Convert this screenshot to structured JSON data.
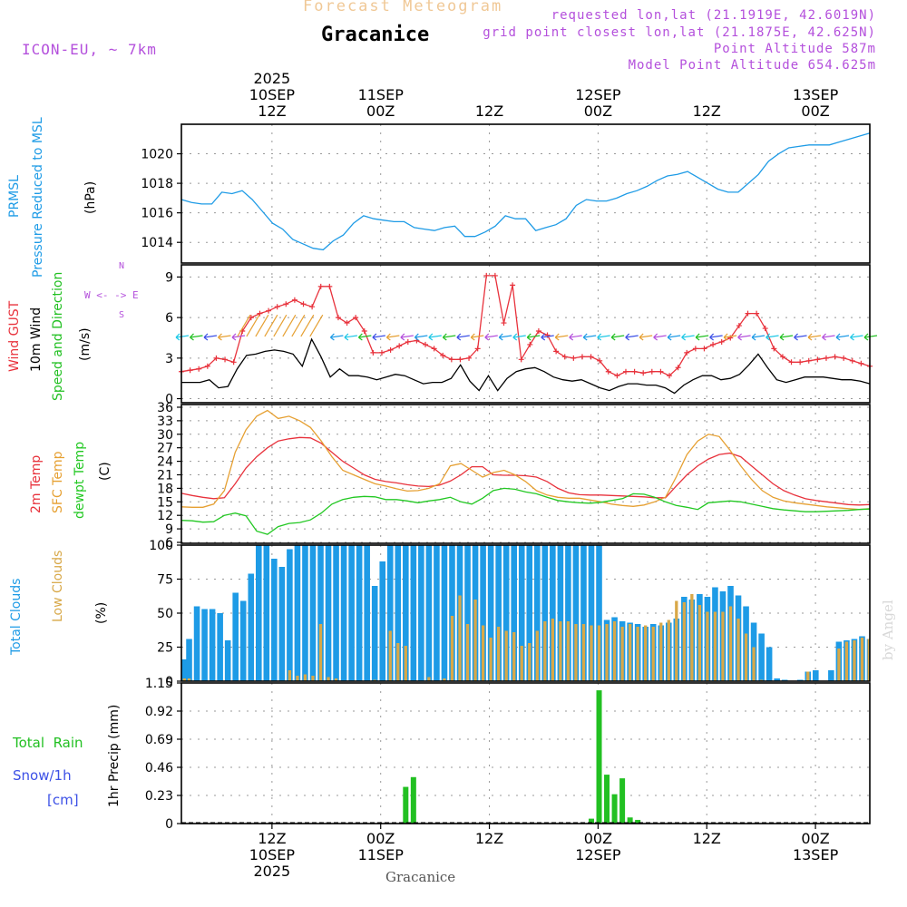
{
  "header": {
    "super_title": "Forecast Meteogram",
    "location": "Gracanice",
    "model": "ICON-EU, ~ 7km",
    "requested": "requested lon,lat (21.1919E, 42.6019N)",
    "grid_point": "grid point closest lon,lat (21.1875E, 42.625N)",
    "point_alt": "Point Altitude 587m",
    "model_alt": "Model Point Altitude 654.625m",
    "watermark": "by Angel",
    "footer": "Gracanice"
  },
  "colors": {
    "pressure": "#1e9be6",
    "gust": "#e8323c",
    "wind": "#000000",
    "dir": "#22c022",
    "t2m": "#e8323c",
    "sfc": "#e6a032",
    "dewpt": "#22c822",
    "total_cloud": "#1e9be6",
    "low_cloud": "#d8a848",
    "rain": "#22c022",
    "snow": "#3c50e6",
    "purple": "#b450dc",
    "title_orange": "#f0c896"
  },
  "chart_data": [
    {
      "type": "line",
      "id": "pressure",
      "title": "PRMSL Pressure Reduced to MSL",
      "ylabel_lines": [
        "PRMSL",
        "Pressure Reduced to MSL"
      ],
      "units": "(hPa)",
      "ylim": [
        1012.6,
        1022.0
      ],
      "yticks": [
        1014,
        1016,
        1018,
        1020
      ],
      "x": [
        0,
        1,
        2,
        3,
        4,
        5,
        6,
        7,
        8,
        9,
        10,
        11,
        12,
        13,
        14,
        15,
        16,
        17,
        18,
        19,
        20,
        21,
        22,
        23,
        24,
        25,
        26,
        27,
        28,
        29,
        30,
        31,
        32,
        33,
        34,
        35,
        36,
        37,
        38,
        39,
        40,
        41,
        42,
        43,
        44,
        45,
        46,
        47,
        48,
        49,
        50,
        51,
        52,
        53,
        54,
        55,
        56,
        57,
        58,
        59,
        60,
        61,
        62,
        63
      ],
      "values": [
        1016.9,
        1016.7,
        1016.6,
        1016.6,
        1017.4,
        1017.3,
        1017.5,
        1016.9,
        1016.1,
        1015.3,
        1014.9,
        1014.2,
        1013.9,
        1013.6,
        1013.5,
        1014.1,
        1014.5,
        1015.3,
        1015.8,
        1015.6,
        1015.5,
        1015.4,
        1015.4,
        1015.0,
        1014.9,
        1014.8,
        1015.0,
        1015.1,
        1014.4,
        1014.4,
        1014.7,
        1015.1,
        1015.8,
        1015.6,
        1015.6,
        1014.8,
        1015.0,
        1015.2,
        1015.6,
        1016.5,
        1016.9,
        1016.8,
        1016.8,
        1017.0,
        1017.3,
        1017.5,
        1017.8,
        1018.2,
        1018.5,
        1018.6,
        1018.8,
        1018.4,
        1018.0,
        1017.6,
        1017.4,
        1017.4,
        1018.0,
        1018.6,
        1019.5,
        1020.0,
        1020.4,
        1020.5,
        1020.6,
        1020.6
      ],
      "extra_tail": [
        1020.6,
        1020.8,
        1021.0,
        1021.2,
        1021.4
      ]
    },
    {
      "type": "line",
      "id": "wind",
      "title": "Wind GUST / 10m Wind Speed and Direction",
      "ylabel_lines": [
        "Wind GUST",
        "10m Wind",
        "Speed and Direction"
      ],
      "units": "(m/s)",
      "ylim": [
        -0.3,
        9.9
      ],
      "yticks": [
        0,
        3,
        6,
        9
      ],
      "compass": [
        "N",
        "W <- -> E",
        "S"
      ],
      "series": [
        {
          "name": "Wind GUST",
          "values": [
            2.0,
            2.1,
            2.2,
            2.4,
            3.0,
            2.9,
            2.7,
            5.0,
            6.0,
            6.3,
            6.5,
            6.8,
            7.0,
            7.3,
            7.0,
            6.8,
            8.3,
            8.3,
            6.0,
            5.6,
            6.0,
            5.0,
            3.4,
            3.4,
            3.6,
            3.9,
            4.2,
            4.3,
            4.0,
            3.7,
            3.2,
            2.9,
            2.9,
            3.0,
            3.7,
            9.1,
            9.1,
            5.6,
            8.4,
            2.9,
            4.0,
            5.0,
            4.7,
            3.5,
            3.1,
            3.0,
            3.1,
            3.1,
            2.8,
            2.0,
            1.7,
            2.0,
            2.0,
            1.9,
            2.0,
            2.0,
            1.7,
            2.3,
            3.4,
            3.7,
            3.7,
            4.0,
            4.2,
            4.5,
            5.4,
            6.3,
            6.3,
            5.2,
            3.7,
            3.1,
            2.7,
            2.7,
            2.8,
            2.9,
            3.0,
            3.1,
            3.0,
            2.8,
            2.6,
            2.4
          ]
        },
        {
          "name": "10m Wind",
          "values": [
            1.2,
            1.2,
            1.2,
            1.4,
            0.8,
            0.9,
            2.2,
            3.2,
            3.3,
            3.5,
            3.6,
            3.5,
            3.3,
            2.4,
            4.4,
            3.1,
            1.6,
            2.2,
            1.7,
            1.7,
            1.6,
            1.4,
            1.6,
            1.8,
            1.7,
            1.4,
            1.1,
            1.2,
            1.2,
            1.5,
            2.5,
            1.3,
            0.6,
            1.7,
            0.6,
            1.5,
            2.0,
            2.2,
            2.3,
            2.0,
            1.6,
            1.4,
            1.3,
            1.4,
            1.1,
            0.8,
            0.6,
            0.9,
            1.1,
            1.1,
            1.0,
            1.0,
            0.8,
            0.4,
            1.0,
            1.4,
            1.7,
            1.7,
            1.4,
            1.5,
            1.8,
            2.5,
            3.3,
            2.3,
            1.4,
            1.2,
            1.4,
            1.6,
            1.6,
            1.6,
            1.5,
            1.4,
            1.4,
            1.3,
            1.1
          ]
        }
      ]
    },
    {
      "type": "line",
      "id": "temperature",
      "title": "2m Temp / SFC Temp / dewpt Temp",
      "ylabel_lines": [
        "2m Temp",
        "SFC Temp",
        "dewpt Temp"
      ],
      "units": "(C)",
      "ylim": [
        5.8,
        36.6
      ],
      "yticks": [
        6,
        9,
        12,
        15,
        18,
        21,
        24,
        27,
        30,
        33,
        36
      ],
      "series": [
        {
          "name": "2m Temp",
          "values": [
            16.9,
            16.4,
            16.0,
            15.7,
            15.9,
            19.0,
            22.5,
            25.0,
            27.0,
            28.5,
            29.0,
            29.3,
            29.2,
            28.0,
            26.0,
            24.0,
            22.5,
            21.0,
            20.0,
            19.5,
            19.2,
            18.8,
            18.5,
            18.4,
            18.7,
            19.6,
            21.0,
            22.8,
            22.8,
            21.0,
            20.9,
            20.9,
            20.8,
            20.5,
            19.5,
            18.0,
            17.0,
            16.6,
            16.5,
            16.5,
            16.4,
            16.3,
            16.2,
            16.1,
            15.9,
            15.9,
            18.5,
            21.0,
            23.0,
            24.5,
            25.5,
            25.8,
            25.0,
            23.0,
            21.0,
            19.0,
            17.5,
            16.5,
            15.7,
            15.3,
            15.0,
            14.7,
            14.4,
            14.3,
            14.4
          ]
        },
        {
          "name": "SFC Temp",
          "values": [
            13.9,
            13.8,
            13.8,
            14.5,
            17.5,
            26.0,
            31.0,
            34.0,
            35.3,
            33.5,
            34.0,
            33.0,
            31.5,
            28.5,
            25.0,
            22.0,
            21.0,
            20.0,
            19.0,
            18.5,
            17.9,
            17.4,
            17.5,
            18.0,
            19.0,
            23.0,
            23.5,
            22.0,
            20.5,
            21.5,
            22.0,
            21.0,
            19.5,
            17.5,
            16.5,
            16.0,
            15.8,
            15.8,
            15.4,
            15.0,
            14.5,
            14.2,
            14.0,
            14.3,
            15.0,
            16.0,
            20.5,
            25.5,
            28.5,
            30.0,
            29.5,
            26.5,
            23.0,
            20.0,
            17.5,
            16.0,
            15.2,
            14.8,
            14.5,
            14.2,
            13.9,
            13.7,
            13.5,
            13.3,
            13.5
          ]
        },
        {
          "name": "dewpt Temp",
          "values": [
            10.9,
            10.8,
            10.5,
            10.6,
            12.0,
            12.5,
            11.9,
            8.5,
            7.8,
            9.5,
            10.2,
            10.4,
            11.0,
            12.5,
            14.5,
            15.5,
            16.0,
            16.2,
            16.1,
            15.5,
            15.5,
            15.2,
            14.8,
            15.2,
            15.5,
            16.0,
            15.0,
            14.5,
            15.8,
            17.5,
            18.0,
            17.8,
            17.2,
            16.8,
            16.0,
            15.3,
            15.0,
            14.8,
            14.7,
            14.9,
            15.3,
            15.7,
            16.8,
            16.7,
            16.0,
            15.0,
            14.2,
            13.8,
            13.3,
            14.8,
            15.0,
            15.2,
            15.0,
            14.5,
            14.0,
            13.5,
            13.2,
            13.0,
            12.8,
            12.8,
            12.9,
            13.0,
            13.1,
            13.3,
            13.4
          ]
        }
      ]
    },
    {
      "type": "bar",
      "id": "clouds",
      "title": "Total Clouds / Low Clouds",
      "ylabel_lines": [
        "Total Clouds",
        "Low Clouds"
      ],
      "units": "(%)",
      "ylim": [
        0,
        100
      ],
      "yticks": [
        0,
        25,
        50,
        75,
        100
      ],
      "series": [
        {
          "name": "Total Clouds",
          "values": [
            16,
            31,
            55,
            53,
            53,
            50,
            30,
            65,
            59,
            79,
            100,
            100,
            90,
            84,
            97,
            100,
            100,
            100,
            100,
            100,
            100,
            100,
            100,
            100,
            100,
            70,
            88,
            100,
            100,
            100,
            100,
            100,
            100,
            100,
            100,
            100,
            100,
            100,
            100,
            100,
            100,
            100,
            100,
            100,
            100,
            100,
            100,
            100,
            100,
            100,
            100,
            100,
            100,
            100,
            100,
            45,
            47,
            44,
            43,
            42,
            40,
            42,
            41,
            43,
            46,
            62,
            60,
            64,
            62,
            69,
            66,
            70,
            63,
            55,
            43,
            35,
            25,
            2,
            1,
            0,
            1,
            7,
            8,
            0,
            8,
            29,
            30,
            31,
            33,
            31
          ]
        },
        {
          "name": "Low Clouds",
          "values": [
            2,
            2,
            0,
            0,
            0,
            0,
            0,
            0,
            0,
            0,
            0,
            0,
            0,
            0,
            8,
            4,
            5,
            4,
            42,
            3,
            2,
            0,
            0,
            0,
            0,
            1,
            0,
            37,
            28,
            26,
            0,
            0,
            3,
            0,
            2,
            48,
            63,
            42,
            60,
            41,
            32,
            40,
            37,
            36,
            26,
            28,
            37,
            44,
            46,
            44,
            44,
            42,
            42,
            41,
            41,
            42,
            44,
            40,
            42,
            40,
            41,
            40,
            43,
            45,
            59,
            58,
            64,
            56,
            51,
            51,
            51,
            55,
            46,
            35,
            25,
            1,
            0,
            0,
            0,
            0,
            0,
            7,
            0,
            0,
            0,
            24,
            29,
            30,
            32,
            31
          ]
        }
      ]
    },
    {
      "type": "bar",
      "id": "precip",
      "title": "1hr Precip (mm)",
      "ylabel_lines": [
        "1hr Precip (mm)"
      ],
      "legend_lines": [
        "Total  Rain",
        "Snow/1h",
        "[cm]"
      ],
      "units": "",
      "ylim": [
        0,
        1.15
      ],
      "yticks": [
        0,
        0.23,
        0.46,
        0.69,
        0.92,
        1.15
      ],
      "series": [
        {
          "name": "Total Rain",
          "x": [
            29,
            30,
            53,
            54,
            55,
            56,
            57,
            58,
            59
          ],
          "values": [
            0.3,
            0.38,
            0.04,
            1.09,
            0.4,
            0.24,
            0.37,
            0.05,
            0.03
          ]
        }
      ]
    }
  ],
  "time_axis": {
    "top_year": "2025",
    "labels": [
      {
        "pos": 10,
        "top": "10SEP",
        "sub": "12Z"
      },
      {
        "pos": 22,
        "top": "11SEP",
        "sub": "00Z"
      },
      {
        "pos": 34,
        "top": "",
        "sub": "12Z"
      },
      {
        "pos": 46,
        "top": "12SEP",
        "sub": "00Z"
      },
      {
        "pos": 58,
        "top": "",
        "sub": "12Z"
      },
      {
        "pos": 70,
        "top": "13SEP",
        "sub": "00Z"
      }
    ],
    "bottom": [
      {
        "pos": 10,
        "a": "12Z",
        "b": "10SEP",
        "c": "2025"
      },
      {
        "pos": 22,
        "a": "00Z",
        "b": "11SEP",
        "c": ""
      },
      {
        "pos": 34,
        "a": "12Z",
        "b": "",
        "c": ""
      },
      {
        "pos": 46,
        "a": "00Z",
        "b": "12SEP",
        "c": ""
      },
      {
        "pos": 58,
        "a": "12Z",
        "b": "",
        "c": ""
      },
      {
        "pos": 70,
        "a": "00Z",
        "b": "13SEP",
        "c": ""
      }
    ],
    "span_hours": 76
  }
}
